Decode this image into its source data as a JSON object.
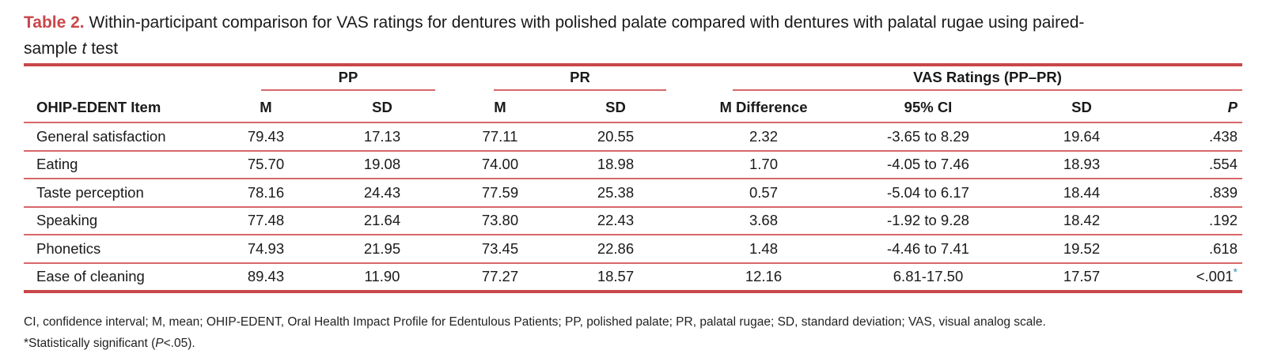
{
  "caption": {
    "label": "Table 2.",
    "text_line1": " Within-participant comparison for VAS ratings for dentures with polished palate compared with dentures with palatal rugae using paired-",
    "text_line2_a": "sample ",
    "text_line2_italic": "t",
    "text_line2_b": " test"
  },
  "groups": {
    "pp": "PP",
    "pr": "PR",
    "vas": "VAS Ratings (PP–PR)"
  },
  "columns": [
    "OHIP-EDENT Item",
    "M",
    "SD",
    "M",
    "SD",
    "M Difference",
    "95% CI",
    "SD",
    "P"
  ],
  "rows": [
    {
      "item": "General satisfaction",
      "pp_m": "79.43",
      "pp_sd": "17.13",
      "pr_m": "77.11",
      "pr_sd": "20.55",
      "m_diff": "2.32",
      "ci": "-3.65 to 8.29",
      "sd": "19.64",
      "p": ".438",
      "sig": ""
    },
    {
      "item": "Eating",
      "pp_m": "75.70",
      "pp_sd": "19.08",
      "pr_m": "74.00",
      "pr_sd": "18.98",
      "m_diff": "1.70",
      "ci": "-4.05 to 7.46",
      "sd": "18.93",
      "p": ".554",
      "sig": ""
    },
    {
      "item": "Taste perception",
      "pp_m": "78.16",
      "pp_sd": "24.43",
      "pr_m": "77.59",
      "pr_sd": "25.38",
      "m_diff": "0.57",
      "ci": "-5.04 to 6.17",
      "sd": "18.44",
      "p": ".839",
      "sig": ""
    },
    {
      "item": "Speaking",
      "pp_m": "77.48",
      "pp_sd": "21.64",
      "pr_m": "73.80",
      "pr_sd": "22.43",
      "m_diff": "3.68",
      "ci": "-1.92 to 9.28",
      "sd": "18.42",
      "p": ".192",
      "sig": ""
    },
    {
      "item": "Phonetics",
      "pp_m": "74.93",
      "pp_sd": "21.95",
      "pr_m": "73.45",
      "pr_sd": "22.86",
      "m_diff": "1.48",
      "ci": "-4.46 to 7.41",
      "sd": "19.52",
      "p": ".618",
      "sig": ""
    },
    {
      "item": "Ease of cleaning",
      "pp_m": "89.43",
      "pp_sd": "11.90",
      "pr_m": "77.27",
      "pr_sd": "18.57",
      "m_diff": "12.16",
      "ci": "6.81-17.50",
      "sd": "17.57",
      "p": "<.001",
      "sig": "*"
    }
  ],
  "footnotes": {
    "abbrev": "CI, confidence interval; M, mean; OHIP-EDENT, Oral Health Impact Profile for Edentulous Patients; PP, polished palate; PR, palatal rugae; SD, standard deviation; VAS, visual analog scale.",
    "sig_a": "*Statistically significant (",
    "sig_italic": "P",
    "sig_b": "<.05)."
  },
  "colors": {
    "accent": "#c9474a",
    "significance": "#3a8fb7"
  }
}
